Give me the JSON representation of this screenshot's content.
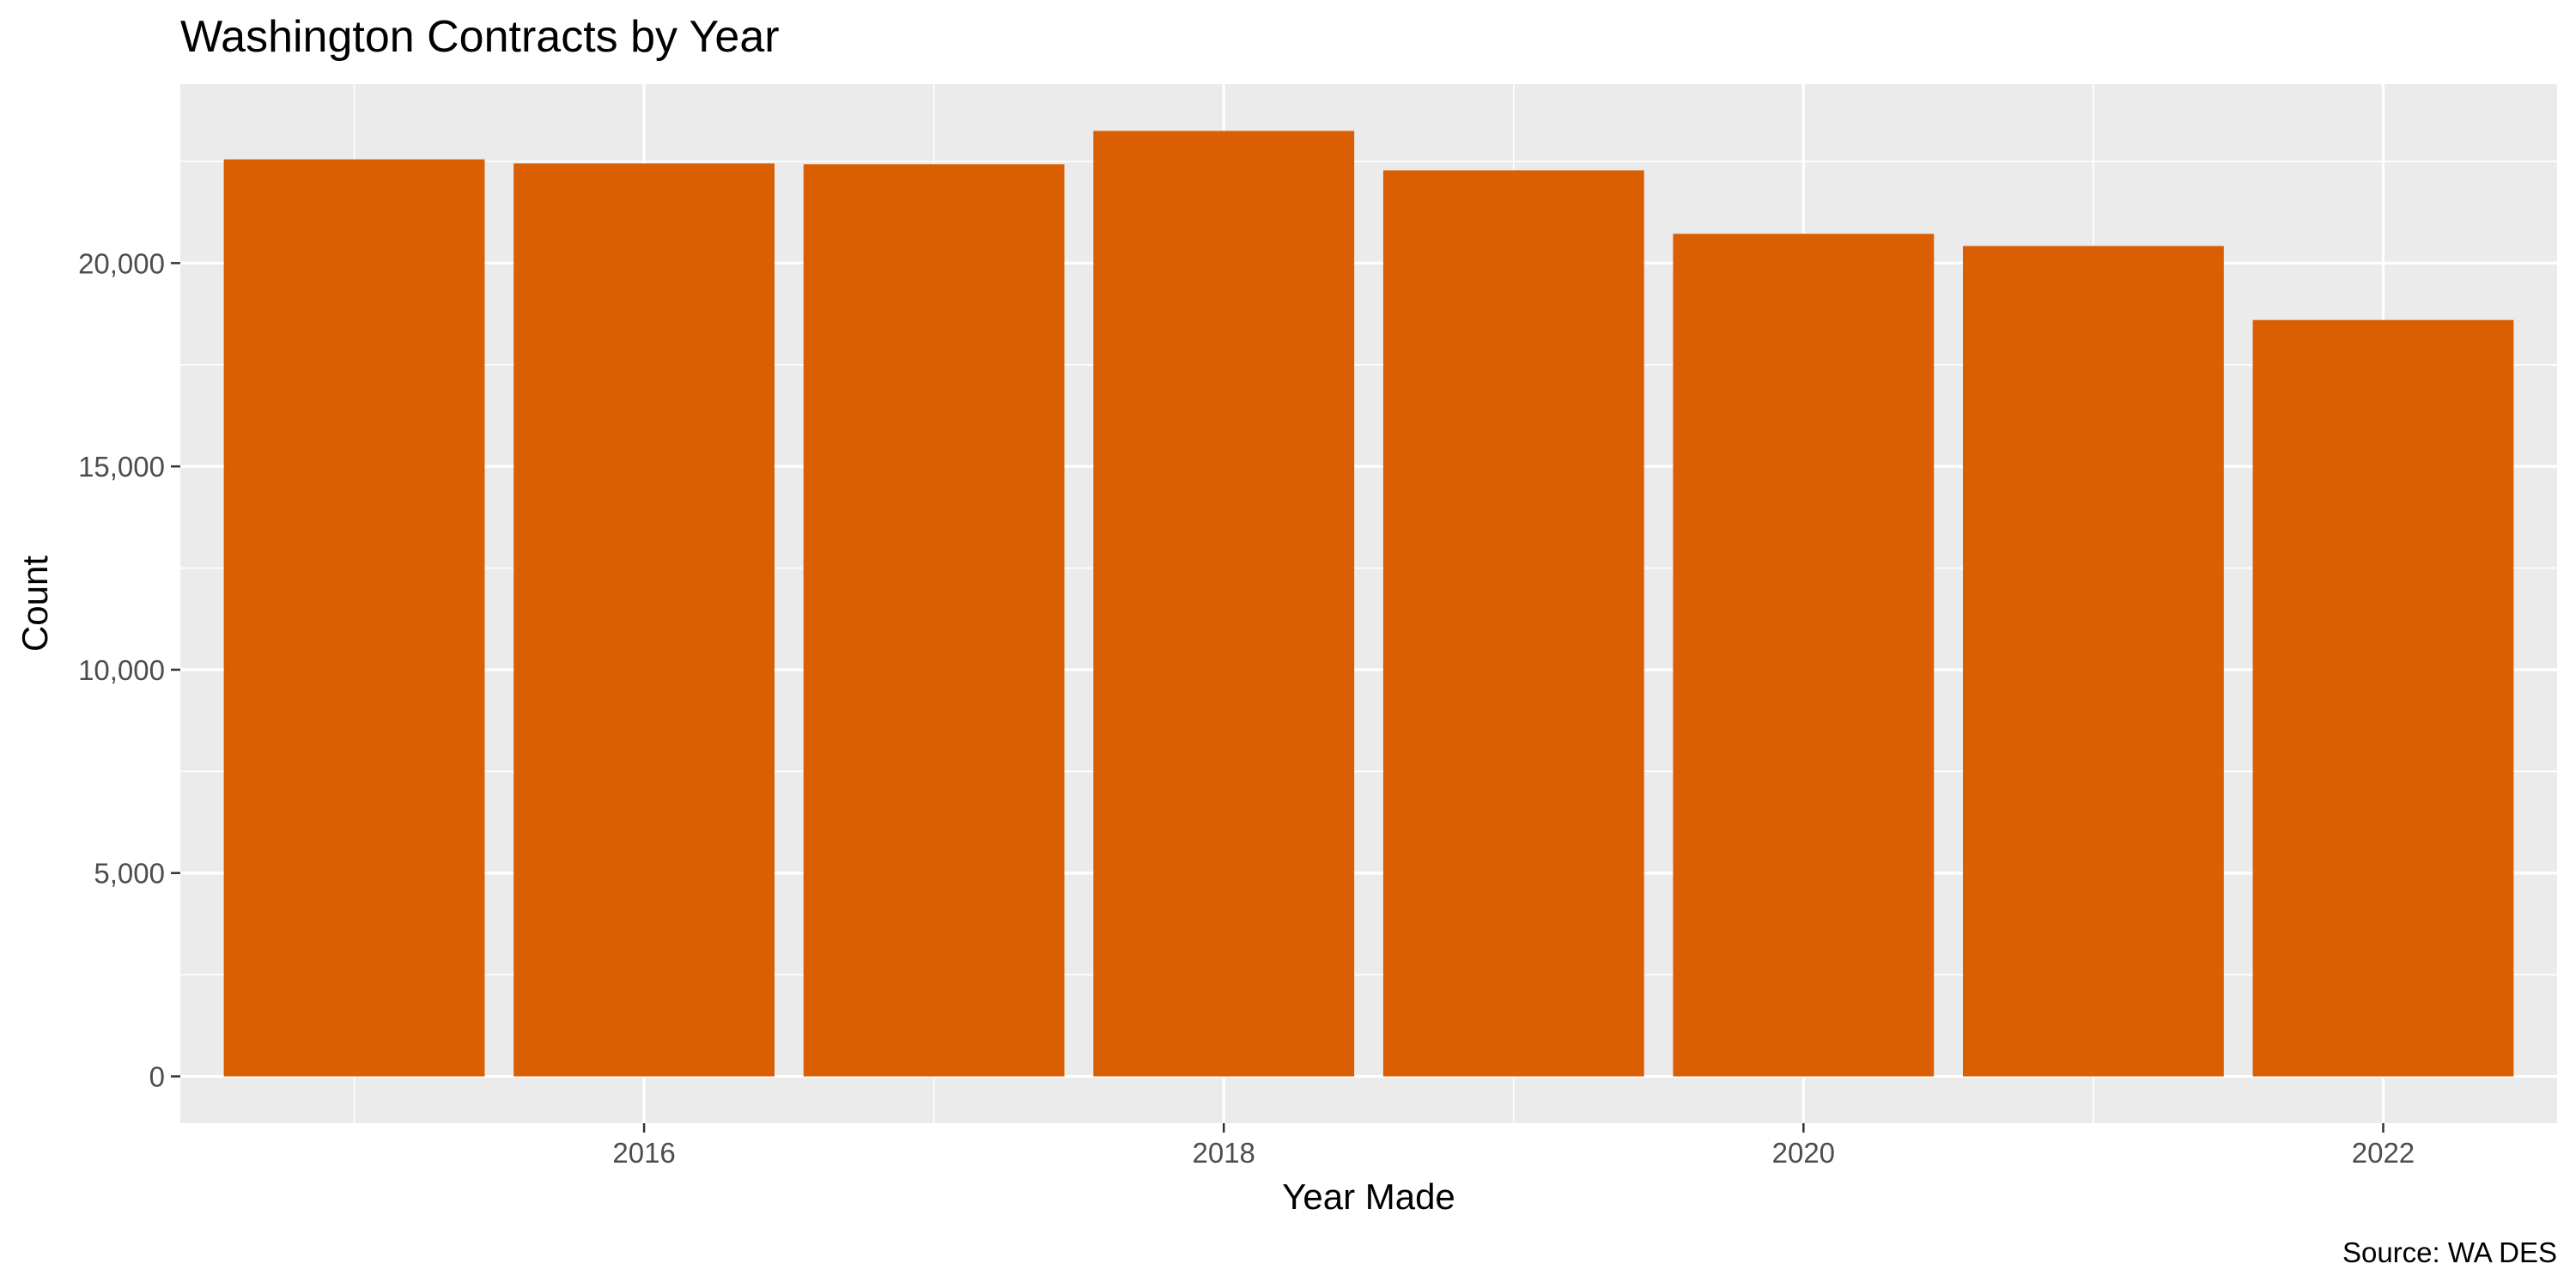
{
  "chart_data": {
    "type": "bar",
    "title": "Washington Contracts by Year",
    "xlabel": "Year Made",
    "ylabel": "Count",
    "caption": "Source: WA DES",
    "categories": [
      2015,
      2016,
      2017,
      2018,
      2019,
      2020,
      2021,
      2022
    ],
    "values": [
      22550,
      22450,
      22430,
      23250,
      22280,
      20720,
      20420,
      18600
    ],
    "xlim": [
      2014.4,
      2022.6
    ],
    "ylim": [
      -1150,
      24400
    ],
    "x_ticks": [
      2016,
      2018,
      2020,
      2022
    ],
    "x_tick_labels": [
      "2016",
      "2018",
      "2020",
      "2022"
    ],
    "y_ticks": [
      0,
      5000,
      10000,
      15000,
      20000
    ],
    "y_tick_labels": [
      "0",
      "5,000",
      "10,000",
      "15,000",
      "20,000"
    ],
    "bar_color": "#D95F02",
    "panel_color": "#EBEBEB",
    "grid_color": "#FFFFFF",
    "grid": true
  }
}
